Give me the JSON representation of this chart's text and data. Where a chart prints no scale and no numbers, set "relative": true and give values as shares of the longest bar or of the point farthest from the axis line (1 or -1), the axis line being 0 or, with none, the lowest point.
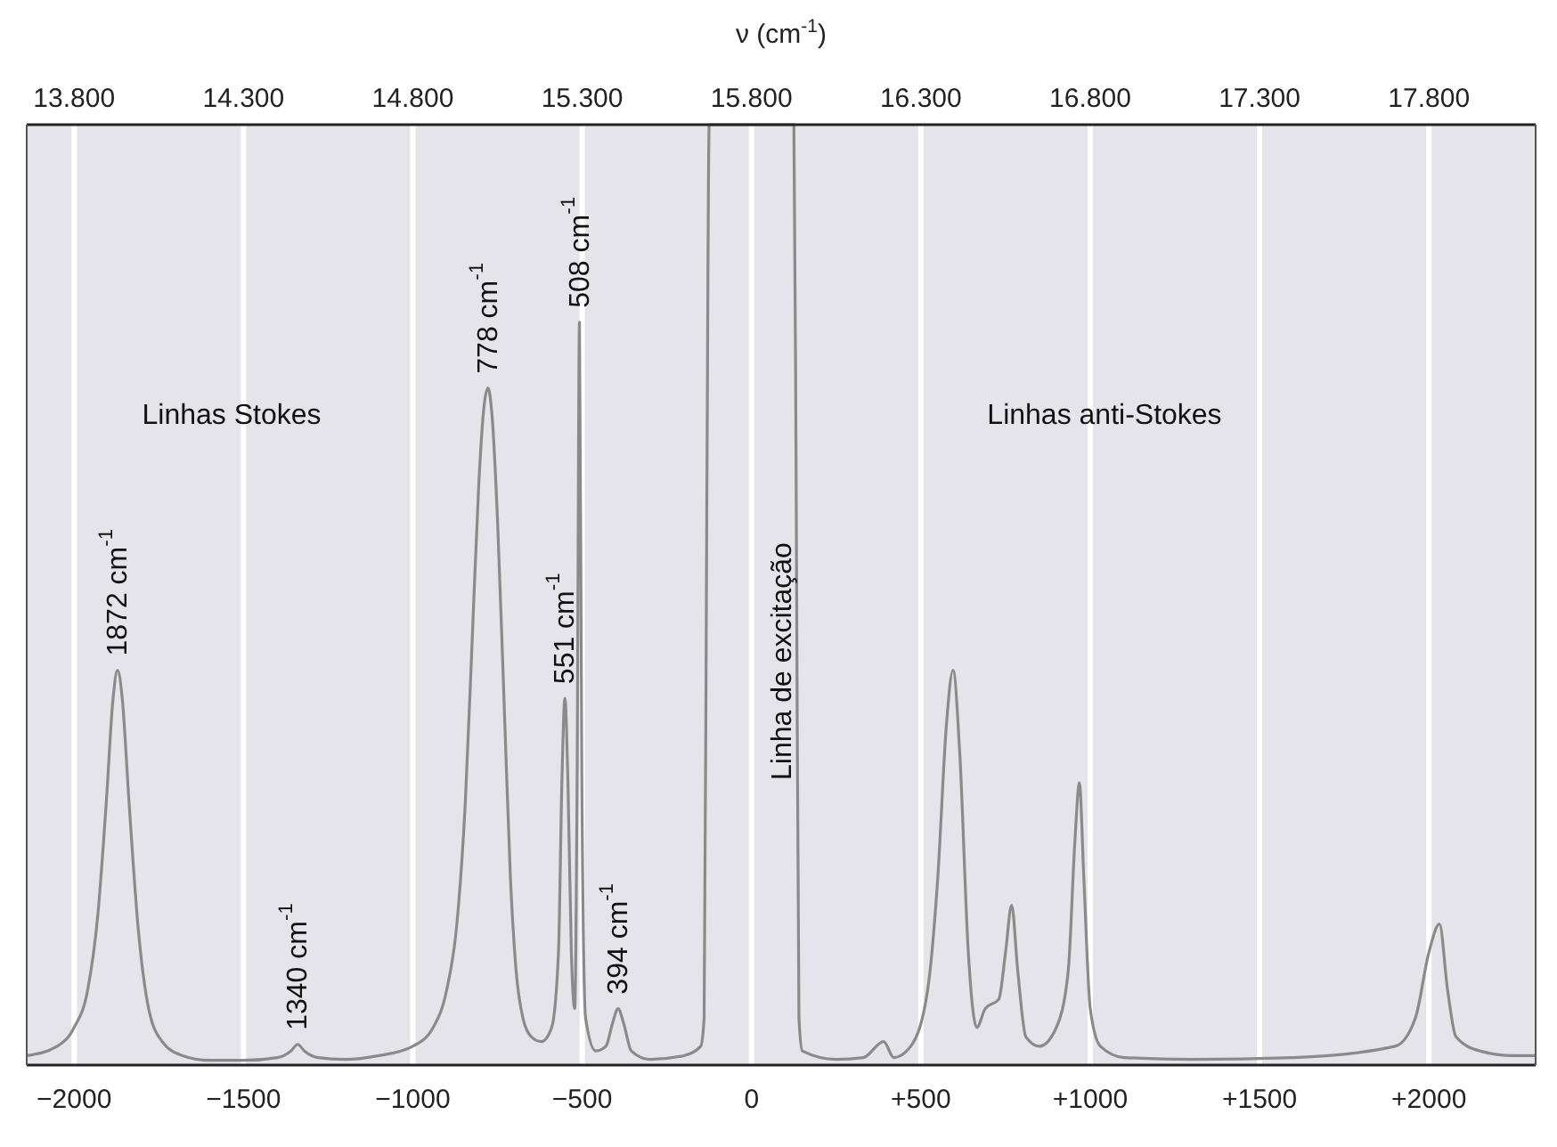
{
  "chart_data": {
    "type": "line",
    "relative": true,
    "x2label": "ν (cm$^{-1}$)",
    "xlim": [
      -2140,
      2315
    ],
    "xticks": [
      {
        "value": -2000,
        "label": "−2000"
      },
      {
        "value": -1500,
        "label": "−1500"
      },
      {
        "value": -1000,
        "label": "−1000"
      },
      {
        "value": -500,
        "label": "−500"
      },
      0,
      {
        "value": 500,
        "label": "+500"
      },
      {
        "value": 1000,
        "label": "+1000"
      },
      {
        "value": 1500,
        "label": "+1500"
      },
      {
        "value": 2000,
        "label": "+2000"
      }
    ],
    "x2lim": [
      13660,
      18115
    ],
    "x2ticks": [
      {
        "value": 13800,
        "label": "13.800"
      },
      {
        "value": 14300,
        "label": "14.300"
      },
      {
        "value": 14800,
        "label": "14.800"
      },
      {
        "value": 15300,
        "label": "15.300"
      },
      {
        "value": 15800,
        "label": "15.800"
      },
      {
        "value": 16300,
        "label": "16.300"
      },
      {
        "value": 16800,
        "label": "16.800"
      },
      {
        "value": 17300,
        "label": "17.300"
      },
      {
        "value": 17800,
        "label": "17.800"
      }
    ],
    "grid": "x",
    "tick_labels": "x",
    "series": [
      {
        "color": "#8a8a8a",
        "x": [
          -2140,
          -2050,
          -2000,
          -1960,
          -1930,
          -1905,
          -1885,
          -1872,
          -1858,
          -1838,
          -1812,
          -1780,
          -1740,
          -1680,
          -1600,
          -1500,
          -1400,
          -1360,
          -1340,
          -1320,
          -1280,
          -1200,
          -1100,
          -1000,
          -940,
          -900,
          -870,
          -845,
          -825,
          -805,
          -790,
          -778,
          -766,
          -750,
          -730,
          -712,
          -695,
          -675,
          -650,
          -620,
          -590,
          -570,
          -560,
          -551,
          -542,
          -532,
          -522,
          -515,
          -508,
          -501,
          -490,
          -460,
          -430,
          -410,
          -394,
          -378,
          -355,
          -300,
          -200,
          -150,
          -140,
          -132,
          -125,
          125,
          132,
          140,
          150,
          250,
          330,
          390,
          420,
          470,
          520,
          550,
          575,
          595,
          615,
          640,
          665,
          690,
          730,
          750,
          768,
          786,
          810,
          850,
          900,
          935,
          955,
          968,
          981,
          1000,
          1030,
          1100,
          1300,
          1600,
          1900,
          1960,
          2000,
          2031,
          2055,
          2080,
          2150,
          2250,
          2315
        ],
        "values": [
          0.01,
          0.02,
          0.04,
          0.08,
          0.16,
          0.28,
          0.39,
          0.42,
          0.39,
          0.28,
          0.15,
          0.06,
          0.025,
          0.01,
          0.005,
          0.005,
          0.008,
          0.015,
          0.022,
          0.015,
          0.008,
          0.006,
          0.01,
          0.02,
          0.04,
          0.08,
          0.15,
          0.28,
          0.45,
          0.62,
          0.7,
          0.72,
          0.69,
          0.58,
          0.38,
          0.2,
          0.1,
          0.05,
          0.03,
          0.025,
          0.04,
          0.12,
          0.3,
          0.39,
          0.3,
          0.12,
          0.06,
          0.3,
          0.79,
          0.3,
          0.05,
          0.015,
          0.02,
          0.045,
          0.06,
          0.045,
          0.015,
          0.006,
          0.01,
          0.02,
          0.05,
          0.6,
          1,
          1,
          0.6,
          0.05,
          0.015,
          0.006,
          0.008,
          0.025,
          0.008,
          0.02,
          0.08,
          0.2,
          0.36,
          0.42,
          0.33,
          0.12,
          0.04,
          0.06,
          0.07,
          0.12,
          0.17,
          0.1,
          0.03,
          0.02,
          0.04,
          0.1,
          0.24,
          0.3,
          0.2,
          0.06,
          0.02,
          0.008,
          0.006,
          0.008,
          0.02,
          0.05,
          0.12,
          0.15,
          0.08,
          0.03,
          0.015,
          0.01,
          0.01
        ]
      }
    ],
    "annotations": [
      "Linhas Stokes",
      "Linhas anti-Stokes",
      "Linha de excitação",
      {
        "text": "1872 cm$^{-1}$",
        "x": -1872,
        "y": 0.42
      },
      {
        "text": "1340 cm$^{-1}$",
        "x": -1340,
        "y": 0.022
      },
      {
        "text": "778 cm$^{-1}$",
        "x": -778,
        "y": 0.72
      },
      {
        "text": "551 cm$^{-1}$",
        "x": -551,
        "y": 0.39
      },
      {
        "text": "508 cm$^{-1}$",
        "x": -508,
        "y": 0.79
      },
      {
        "text": "394 cm$^{-1}$",
        "x": -394,
        "y": 0.06
      }
    ]
  }
}
